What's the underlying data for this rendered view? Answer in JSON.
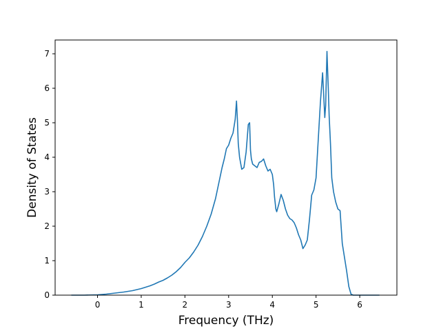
{
  "chart_data": {
    "type": "line",
    "xlabel": "Frequency (THz)",
    "ylabel": "Density of States",
    "xlim": [
      -0.97,
      6.85
    ],
    "ylim": [
      0,
      7.4
    ],
    "xticks": [
      "0",
      "1",
      "2",
      "3",
      "4",
      "5",
      "6"
    ],
    "yticks": [
      "0",
      "1",
      "2",
      "3",
      "4",
      "5",
      "6",
      "7"
    ],
    "grid": false,
    "legend": "none",
    "series": [
      {
        "color": "#1f77b4",
        "x": [
          -0.6,
          -0.3,
          0.0,
          0.2,
          0.4,
          0.6,
          0.8,
          1.0,
          1.1,
          1.2,
          1.3,
          1.4,
          1.5,
          1.6,
          1.7,
          1.8,
          1.9,
          2.0,
          2.1,
          2.2,
          2.3,
          2.4,
          2.5,
          2.6,
          2.7,
          2.8,
          2.85,
          2.9,
          2.95,
          3.0,
          3.05,
          3.1,
          3.15,
          3.18,
          3.2,
          3.22,
          3.25,
          3.3,
          3.35,
          3.4,
          3.45,
          3.48,
          3.5,
          3.52,
          3.55,
          3.6,
          3.65,
          3.7,
          3.75,
          3.8,
          3.85,
          3.9,
          3.95,
          4.0,
          4.03,
          4.05,
          4.08,
          4.1,
          4.15,
          4.2,
          4.25,
          4.3,
          4.35,
          4.4,
          4.45,
          4.5,
          4.55,
          4.6,
          4.65,
          4.7,
          4.75,
          4.8,
          4.85,
          4.9,
          4.95,
          5.0,
          5.05,
          5.1,
          5.15,
          5.2,
          5.22,
          5.25,
          5.28,
          5.3,
          5.33,
          5.36,
          5.4,
          5.45,
          5.5,
          5.55,
          5.6,
          5.65,
          5.7,
          5.75,
          5.8,
          5.85,
          5.9,
          6.0,
          6.2,
          6.45
        ],
        "y": [
          0,
          0,
          0.01,
          0.03,
          0.06,
          0.09,
          0.13,
          0.19,
          0.23,
          0.27,
          0.32,
          0.38,
          0.43,
          0.5,
          0.58,
          0.68,
          0.8,
          0.95,
          1.08,
          1.25,
          1.45,
          1.7,
          2.0,
          2.35,
          2.8,
          3.4,
          3.7,
          3.95,
          4.25,
          4.35,
          4.55,
          4.7,
          5.1,
          5.63,
          5.1,
          4.4,
          4.0,
          3.65,
          3.7,
          4.15,
          4.95,
          5.0,
          4.2,
          3.95,
          3.8,
          3.75,
          3.7,
          3.85,
          3.88,
          3.95,
          3.75,
          3.6,
          3.65,
          3.5,
          3.2,
          2.85,
          2.5,
          2.42,
          2.65,
          2.92,
          2.75,
          2.5,
          2.32,
          2.22,
          2.18,
          2.1,
          1.95,
          1.75,
          1.6,
          1.35,
          1.45,
          1.6,
          2.2,
          2.9,
          3.05,
          3.4,
          4.5,
          5.6,
          6.45,
          5.15,
          5.5,
          7.07,
          6.0,
          5.2,
          4.4,
          3.4,
          3.0,
          2.7,
          2.5,
          2.45,
          1.5,
          1.1,
          0.7,
          0.25,
          0.03,
          0,
          0,
          0,
          0,
          0
        ]
      }
    ]
  }
}
